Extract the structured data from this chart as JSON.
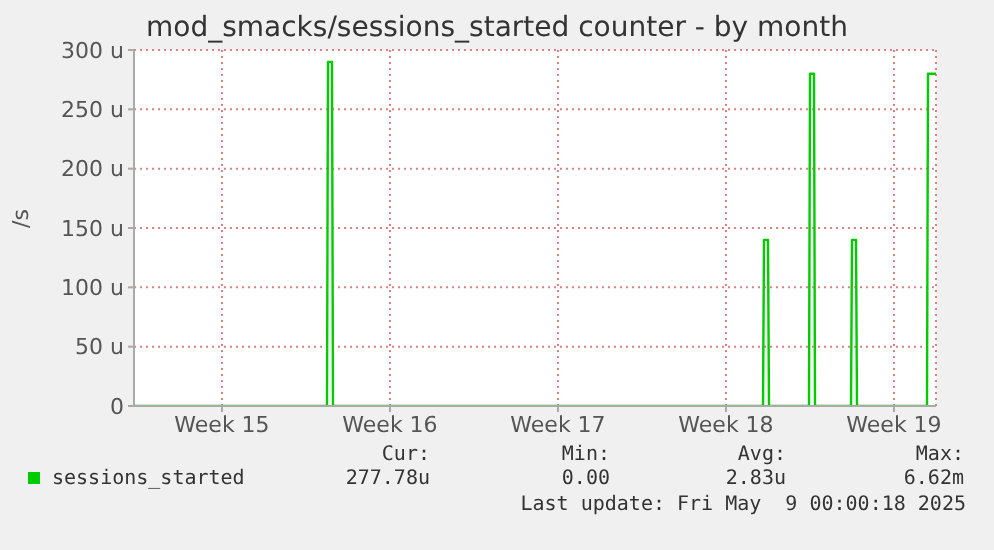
{
  "chart_data": {
    "type": "line",
    "title": "mod_smacks/sessions_started counter - by month",
    "ylabel": "/s",
    "series": [
      {
        "name": "sessions_started",
        "color": "#00cc00",
        "x": [
          "2025-04-06T20:00",
          "2025-04-14T21:00",
          "2025-04-14T22:00",
          "2025-04-15T02:00",
          "2025-04-15T03:00",
          "2025-05-03T01:00",
          "2025-05-03T02:00",
          "2025-05-03T06:00",
          "2025-05-03T07:00",
          "2025-05-04T23:00",
          "2025-05-05T00:00",
          "2025-05-05T04:00",
          "2025-05-05T05:00",
          "2025-05-06T17:00",
          "2025-05-06T18:00",
          "2025-05-06T22:00",
          "2025-05-06T23:00",
          "2025-05-09T21:00",
          "2025-05-09T22:00",
          "2025-05-10T06:00"
        ],
        "values": [
          0,
          0,
          290,
          290,
          0,
          0,
          140,
          140,
          0,
          0,
          280,
          280,
          0,
          0,
          140,
          140,
          0,
          0,
          280,
          280
        ]
      }
    ],
    "xlim": [
      "2025-04-06T20:00",
      "2025-05-10T06:00"
    ],
    "xticks": [
      {
        "value": "2025-04-10T12:00",
        "label": "Week 15"
      },
      {
        "value": "2025-04-17T12:00",
        "label": "Week 16"
      },
      {
        "value": "2025-04-24T12:00",
        "label": "Week 17"
      },
      {
        "value": "2025-05-01T12:00",
        "label": "Week 18"
      },
      {
        "value": "2025-05-08T12:00",
        "label": "Week 19"
      }
    ],
    "ylim": [
      0,
      300
    ],
    "yticks": [
      0,
      {
        "value": 50,
        "label": "50 u"
      },
      {
        "value": 100,
        "label": "100 u"
      },
      {
        "value": 150,
        "label": "150 u"
      },
      {
        "value": 200,
        "label": "200 u"
      },
      {
        "value": 250,
        "label": "250 u"
      },
      {
        "value": 300,
        "label": "300 u"
      }
    ],
    "grid": true,
    "legend": "bottom",
    "marker": "none",
    "line_style": "solid",
    "annotations": [
      "Cur:",
      "Min:",
      "Avg:",
      "Max:",
      "277.78u",
      "0.00",
      "2.83u",
      "6.62m",
      "Last update: Fri May  9 00:00:18 2025"
    ]
  }
}
